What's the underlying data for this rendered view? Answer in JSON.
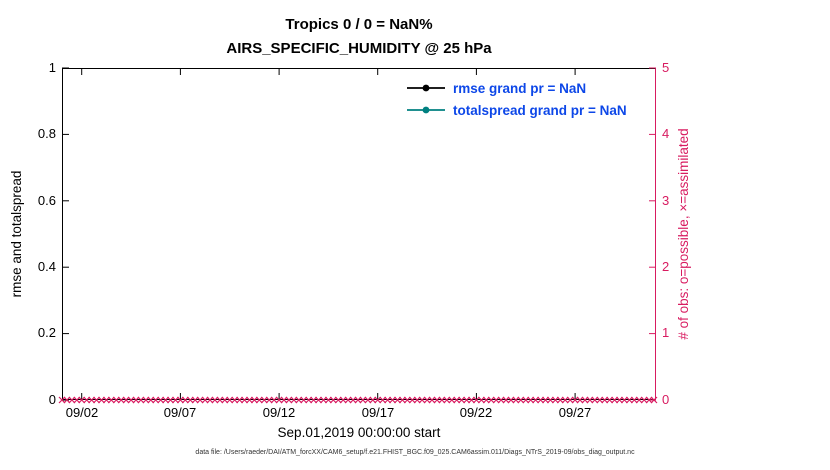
{
  "figure": {
    "footer": "data file: /Users/raeder/DAI/ATM_forcXX/CAM6_setup/f.e21.FHIST_BGC.f09_025.CAM6assim.011/Diags_NTrS_2019-09/obs_diag_output.nc"
  },
  "chart_data": {
    "type": "line",
    "title": "Tropics 0 / 0 = NaN%",
    "subtitle": "AIRS_SPECIFIC_HUMIDITY @ 25 hPa",
    "left_axis": {
      "label": "rmse and totalspread",
      "min": 0,
      "max": 1,
      "tick_labels": [
        "0",
        "0.2",
        "0.4",
        "0.6",
        "0.8",
        "1"
      ]
    },
    "right_axis": {
      "label": "# of obs: o=possible, ×=assimilated",
      "min": 0,
      "max": 5,
      "tick_labels": [
        "0",
        "1",
        "2",
        "3",
        "4",
        "5"
      ],
      "color": "#d81b60"
    },
    "x_axis": {
      "label": "Sep.01,2019 00:00:00 start",
      "tick_labels": [
        "09/02",
        "09/07",
        "09/12",
        "09/17",
        "09/22",
        "09/27"
      ],
      "tick_days": [
        2,
        7,
        12,
        17,
        22,
        27
      ],
      "range_days": [
        1,
        31.1
      ]
    },
    "series": [
      {
        "name": "rmse",
        "legend_label": "rmse grand pr = NaN",
        "color": "#000000",
        "marker": "filled-circle",
        "values": [],
        "grand_mean": "NaN"
      },
      {
        "name": "totalspread",
        "legend_label": "totalspread grand pr = NaN",
        "color": "#008080",
        "marker": "filled-circle",
        "values": [],
        "grand_mean": "NaN"
      },
      {
        "name": "observation-count",
        "marker": "x",
        "color": "#d81b60",
        "value_at_all_times": 0,
        "day_start": 1,
        "day_end": 31,
        "times_per_day": 4,
        "note": "crimson x markers along y=0 spanning entire time axis"
      }
    ],
    "legend_text_color": "#0d47e8",
    "grid": false,
    "legend_position": "top-right-inside"
  }
}
